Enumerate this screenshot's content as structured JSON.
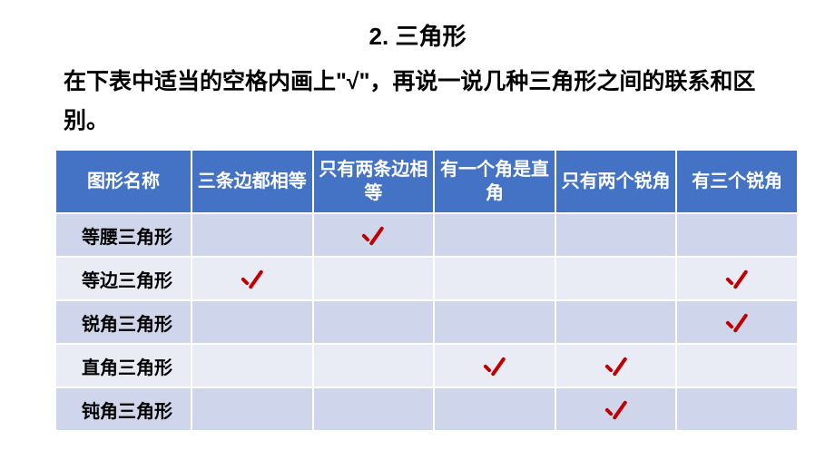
{
  "title": "2. 三角形",
  "instruction": "在下表中适当的空格内画上\"√\"，再说一说几种三角形之间的联系和区别。",
  "table": {
    "headers": [
      "图形名称",
      "三条边都相等",
      "只有两条边相等",
      "有一个角是直角",
      "只有两个锐角",
      "有三个锐角"
    ],
    "rows": [
      {
        "label": "等腰三角形",
        "checks": [
          false,
          true,
          false,
          false,
          false
        ]
      },
      {
        "label": "等边三角形",
        "checks": [
          true,
          false,
          false,
          false,
          true
        ]
      },
      {
        "label": "锐角三角形",
        "checks": [
          false,
          false,
          false,
          false,
          true
        ]
      },
      {
        "label": "直角三角形",
        "checks": [
          false,
          false,
          true,
          true,
          false
        ]
      },
      {
        "label": "钝角三角形",
        "checks": [
          false,
          false,
          false,
          true,
          false
        ]
      }
    ]
  },
  "colors": {
    "header_bg": "#4472c4",
    "header_text": "#ffffff",
    "row_odd_bg": "#cfd5ea",
    "row_even_bg": "#e9ebf5",
    "check_color": "#c00000",
    "border_color": "#ffffff",
    "text_color": "#000000"
  },
  "fonts": {
    "title_size": 26,
    "instruction_size": 25,
    "header_size": 20,
    "cell_size": 20,
    "weight": "bold"
  }
}
